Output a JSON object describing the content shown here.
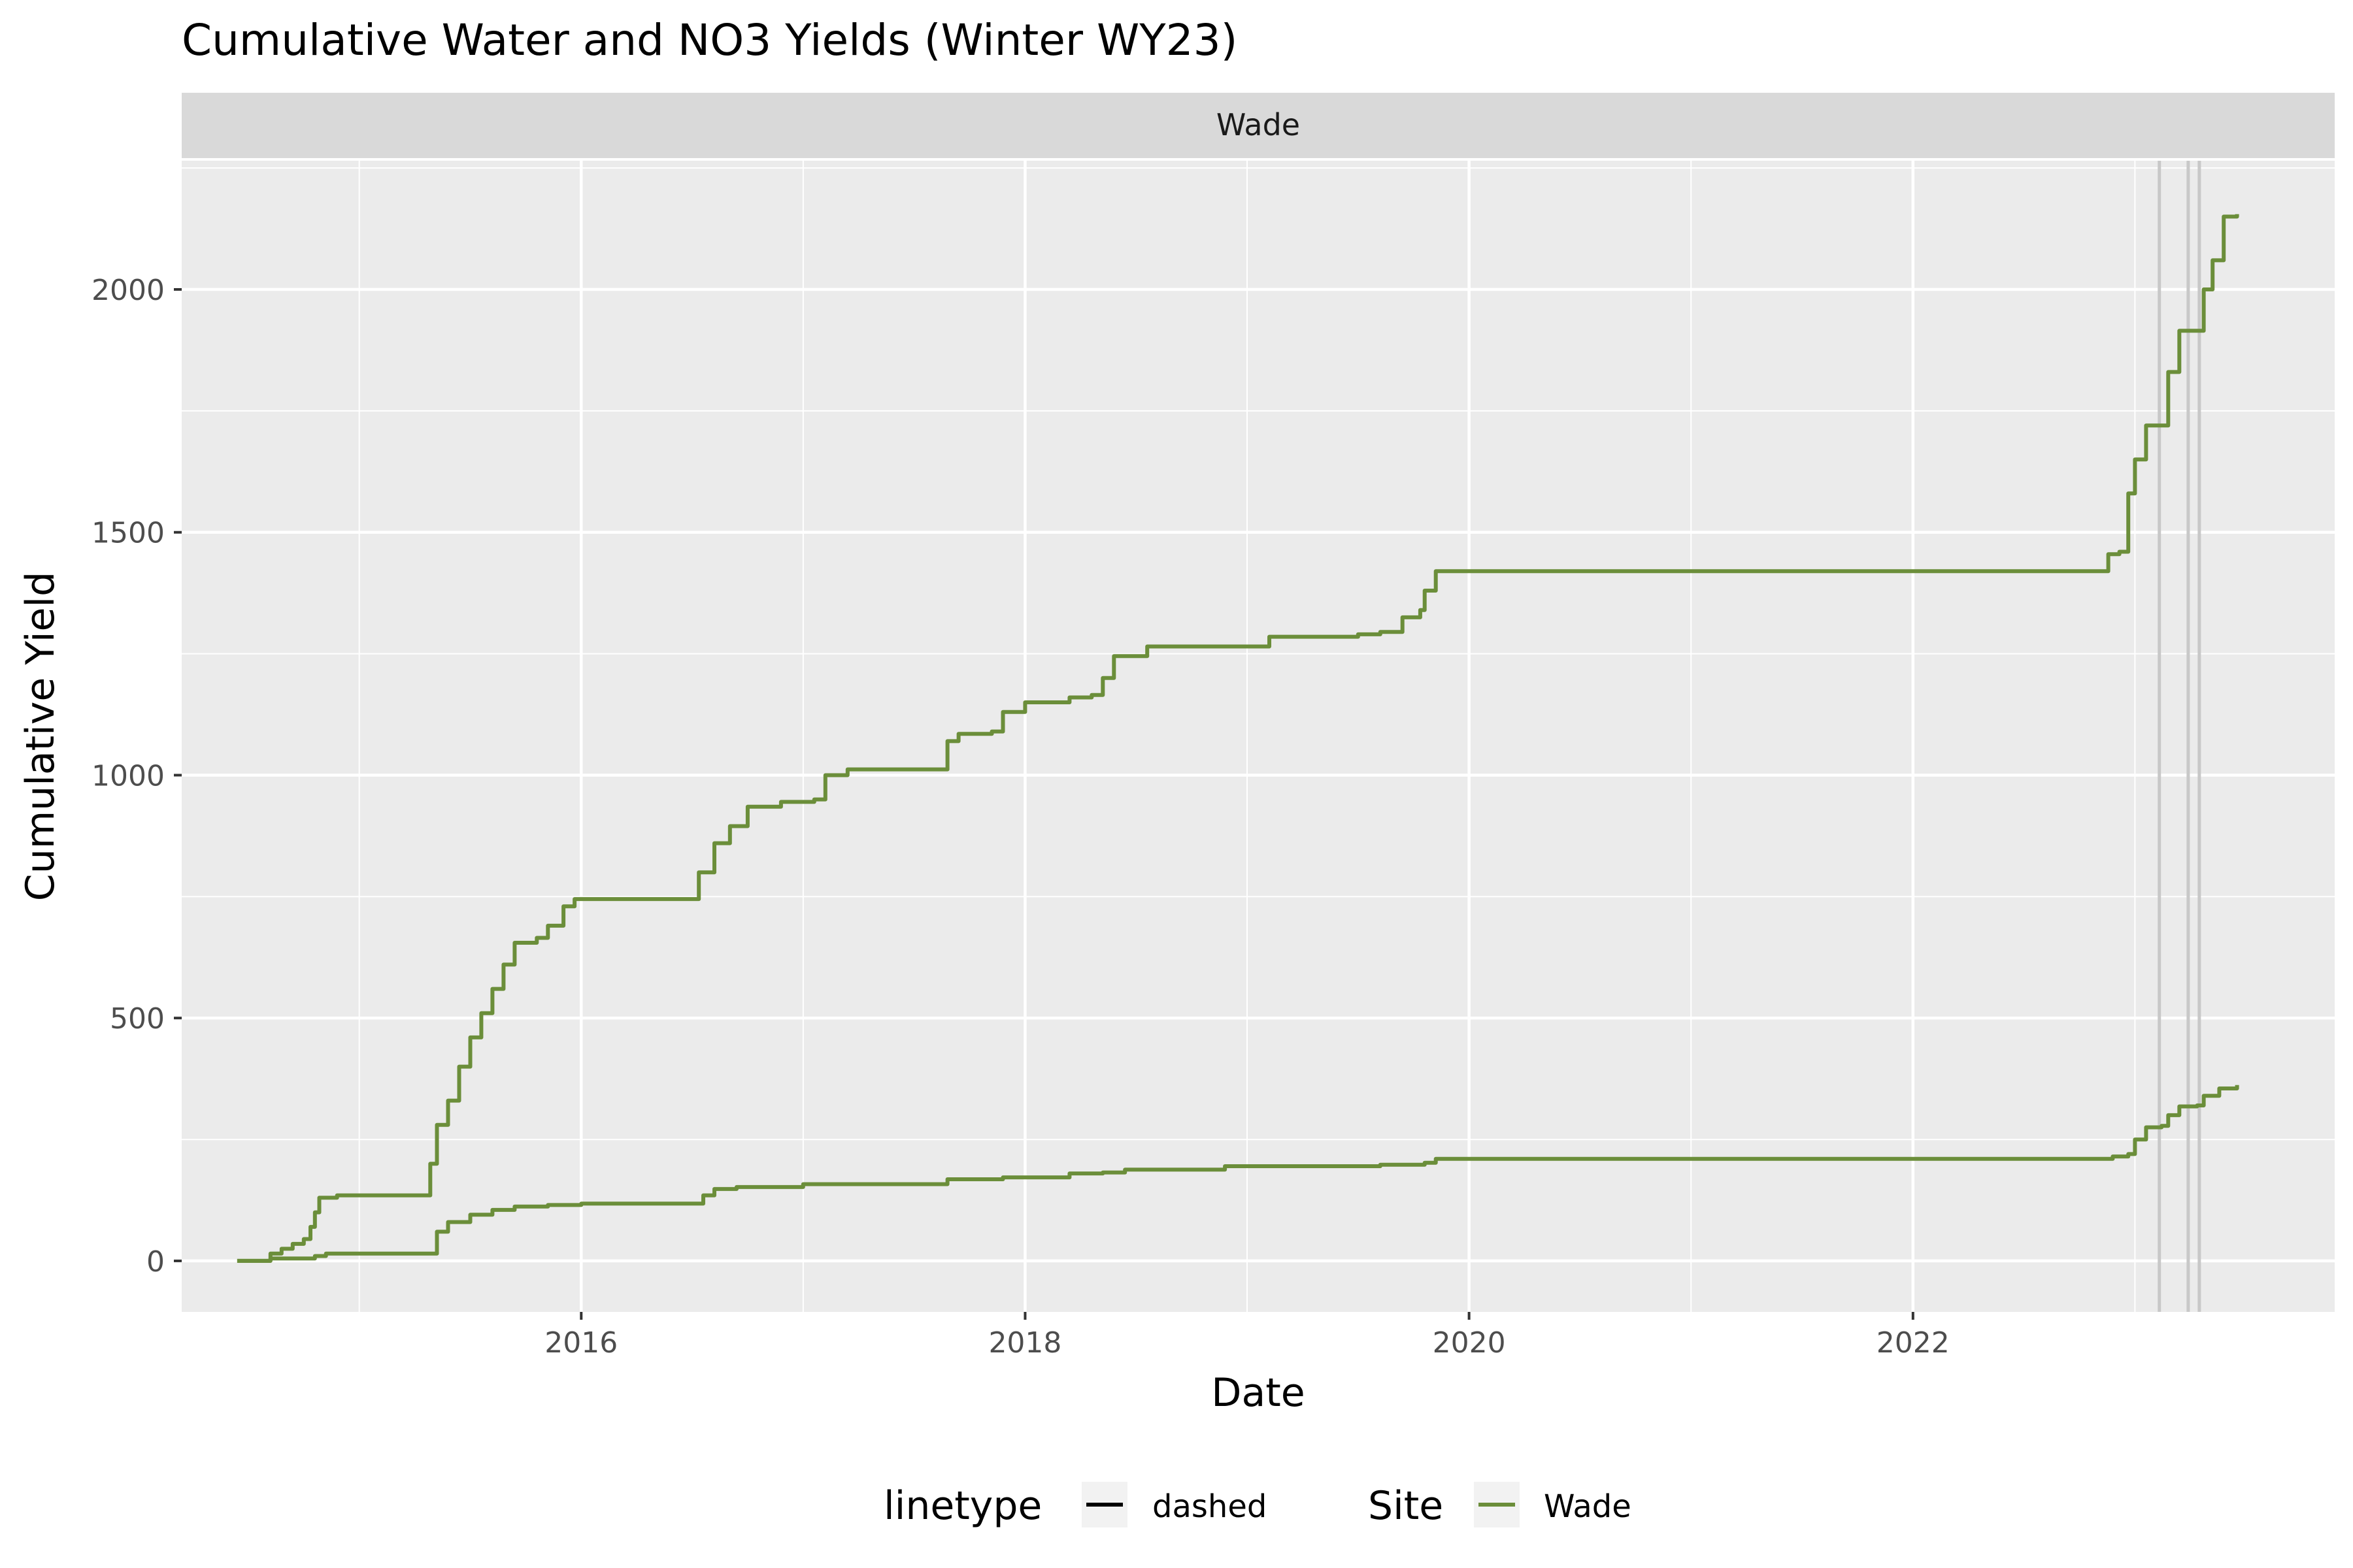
{
  "chart_data": {
    "type": "line",
    "title": "Cumulative Water and NO3 Yields (Winter WY23)",
    "facet": "Wade",
    "xlabel": "Date",
    "ylabel": "Cumulative Yield",
    "x_tick_labels": [
      "2016",
      "2018",
      "2020",
      "2022"
    ],
    "y_tick_labels": [
      "0",
      "500",
      "1000",
      "1500",
      "2000"
    ],
    "xlim": [
      2014.2,
      2023.9
    ],
    "ylim": [
      -105,
      2265
    ],
    "x_breaks": [
      2016,
      2018,
      2020,
      2022
    ],
    "y_breaks": [
      0,
      500,
      1000,
      1500,
      2000
    ],
    "grid": true,
    "legend_position": "bottom",
    "legend": [
      {
        "title": "linetype",
        "label": "dashed",
        "color": "#000000"
      },
      {
        "title": "Site",
        "label": "Wade",
        "color": "#6b8e3a"
      }
    ],
    "vertical_lines_x": [
      2023.11,
      2023.24,
      2023.29
    ],
    "vertical_line_color": "#c8c8c8",
    "series": [
      {
        "name": "Wade",
        "color": "#6b8e3a",
        "points": [
          [
            2014.45,
            0
          ],
          [
            2014.6,
            15
          ],
          [
            2014.65,
            25
          ],
          [
            2014.7,
            35
          ],
          [
            2014.75,
            45
          ],
          [
            2014.78,
            70
          ],
          [
            2014.8,
            100
          ],
          [
            2014.82,
            130
          ],
          [
            2014.9,
            135
          ],
          [
            2015.3,
            135
          ],
          [
            2015.32,
            200
          ],
          [
            2015.35,
            280
          ],
          [
            2015.4,
            330
          ],
          [
            2015.45,
            400
          ],
          [
            2015.5,
            460
          ],
          [
            2015.55,
            510
          ],
          [
            2015.6,
            560
          ],
          [
            2015.65,
            610
          ],
          [
            2015.7,
            655
          ],
          [
            2015.8,
            665
          ],
          [
            2015.85,
            690
          ],
          [
            2015.92,
            730
          ],
          [
            2015.97,
            745
          ],
          [
            2016.5,
            745
          ],
          [
            2016.53,
            800
          ],
          [
            2016.6,
            860
          ],
          [
            2016.67,
            895
          ],
          [
            2016.75,
            935
          ],
          [
            2016.9,
            945
          ],
          [
            2017.05,
            950
          ],
          [
            2017.1,
            1000
          ],
          [
            2017.2,
            1012
          ],
          [
            2017.6,
            1012
          ],
          [
            2017.65,
            1070
          ],
          [
            2017.7,
            1085
          ],
          [
            2017.85,
            1090
          ],
          [
            2017.9,
            1130
          ],
          [
            2018.0,
            1150
          ],
          [
            2018.2,
            1160
          ],
          [
            2018.3,
            1165
          ],
          [
            2018.35,
            1200
          ],
          [
            2018.4,
            1245
          ],
          [
            2018.55,
            1265
          ],
          [
            2019.05,
            1265
          ],
          [
            2019.1,
            1285
          ],
          [
            2019.5,
            1290
          ],
          [
            2019.6,
            1295
          ],
          [
            2019.7,
            1325
          ],
          [
            2019.78,
            1340
          ],
          [
            2019.8,
            1380
          ],
          [
            2019.85,
            1420
          ],
          [
            2022.85,
            1420
          ],
          [
            2022.88,
            1455
          ],
          [
            2022.93,
            1460
          ],
          [
            2022.97,
            1580
          ],
          [
            2023.0,
            1650
          ],
          [
            2023.05,
            1720
          ],
          [
            2023.12,
            1720
          ],
          [
            2023.15,
            1830
          ],
          [
            2023.2,
            1915
          ],
          [
            2023.28,
            1915
          ],
          [
            2023.31,
            2000
          ],
          [
            2023.35,
            2060
          ],
          [
            2023.4,
            2150
          ],
          [
            2023.46,
            2155
          ]
        ]
      },
      {
        "name": "Wade",
        "color": "#6b8e3a",
        "points": [
          [
            2014.45,
            0
          ],
          [
            2014.6,
            5
          ],
          [
            2014.8,
            10
          ],
          [
            2014.85,
            15
          ],
          [
            2015.3,
            15
          ],
          [
            2015.35,
            60
          ],
          [
            2015.4,
            80
          ],
          [
            2015.5,
            95
          ],
          [
            2015.6,
            105
          ],
          [
            2015.7,
            112
          ],
          [
            2015.85,
            115
          ],
          [
            2016.0,
            118
          ],
          [
            2016.5,
            118
          ],
          [
            2016.55,
            135
          ],
          [
            2016.6,
            148
          ],
          [
            2016.7,
            152
          ],
          [
            2017.0,
            158
          ],
          [
            2017.6,
            158
          ],
          [
            2017.65,
            168
          ],
          [
            2017.9,
            172
          ],
          [
            2018.2,
            180
          ],
          [
            2018.35,
            182
          ],
          [
            2018.45,
            188
          ],
          [
            2018.85,
            188
          ],
          [
            2018.9,
            195
          ],
          [
            2019.6,
            198
          ],
          [
            2019.8,
            202
          ],
          [
            2019.85,
            210
          ],
          [
            2022.85,
            210
          ],
          [
            2022.9,
            215
          ],
          [
            2022.97,
            220
          ],
          [
            2023.0,
            250
          ],
          [
            2023.05,
            275
          ],
          [
            2023.12,
            278
          ],
          [
            2023.15,
            300
          ],
          [
            2023.2,
            318
          ],
          [
            2023.28,
            320
          ],
          [
            2023.31,
            340
          ],
          [
            2023.38,
            355
          ],
          [
            2023.46,
            362
          ]
        ]
      }
    ]
  }
}
